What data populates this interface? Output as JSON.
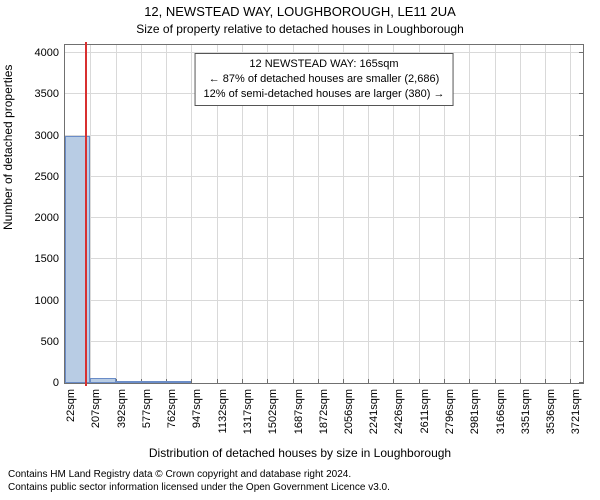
{
  "title": "12, NEWSTEAD WAY, LOUGHBOROUGH, LE11 2UA",
  "subtitle": "Size of property relative to detached houses in Loughborough",
  "ylabel": "Number of detached properties",
  "xlabel": "Distribution of detached houses by size in Loughborough",
  "footer_line1": "Contains HM Land Registry data © Crown copyright and database right 2024.",
  "footer_line2": "Contains public sector information licensed under the Open Government Licence v3.0.",
  "annotation": {
    "line1": "12 NEWSTEAD WAY: 165sqm",
    "line2": "← 87% of detached houses are smaller (2,686)",
    "line3": "12% of semi-detached houses are larger (380) →"
  },
  "chart": {
    "type": "bar",
    "xlim": [
      22,
      3813
    ],
    "ylim": [
      0,
      4100
    ],
    "ytick_step": 500,
    "yticks": [
      0,
      500,
      1000,
      1500,
      2000,
      2500,
      3000,
      3500,
      4000
    ],
    "xtick_step": 185,
    "xticks": [
      22,
      207,
      392,
      577,
      762,
      947,
      1132,
      1317,
      1502,
      1687,
      1872,
      2056,
      2241,
      2426,
      2611,
      2796,
      2981,
      3166,
      3351,
      3536,
      3721
    ],
    "xtick_unit": "sqm",
    "highlight_x": 165,
    "highlight_color": "#d83030",
    "bar_fill": "#b8cce4",
    "bar_border": "#6a8cc7",
    "grid_color": "#d9d9d9",
    "axis_color": "#707070",
    "background_color": "#ffffff",
    "title_fontsize": 13,
    "label_fontsize": 12,
    "tick_fontsize": 11,
    "bars": [
      {
        "x0": 22,
        "x1": 207,
        "y": 3000
      },
      {
        "x0": 207,
        "x1": 392,
        "y": 60
      },
      {
        "x0": 392,
        "x1": 577,
        "y": 25
      },
      {
        "x0": 577,
        "x1": 762,
        "y": 10
      },
      {
        "x0": 762,
        "x1": 947,
        "y": 5
      }
    ]
  }
}
